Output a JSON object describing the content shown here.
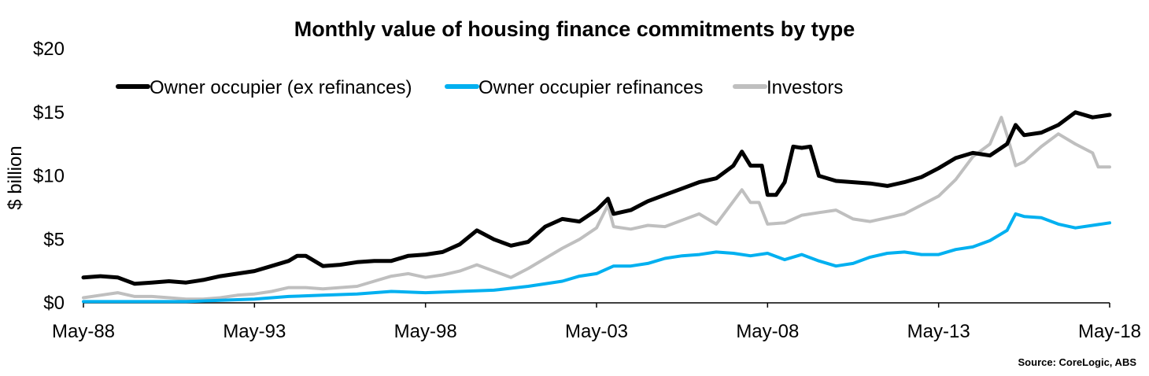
{
  "chart_data": {
    "type": "line",
    "title": "Monthly value of housing finance commitments by type",
    "ylabel": "$ billion",
    "xlabel": "",
    "ylim": [
      0,
      20
    ],
    "y_ticks": [
      "$0",
      "$5",
      "$10",
      "$15",
      "$20"
    ],
    "x_ticks": [
      "May-88",
      "May-93",
      "May-98",
      "May-03",
      "May-08",
      "May-13",
      "May-18"
    ],
    "legend_position": "top-left",
    "source": "Source: CoreLogic, ABS",
    "series": [
      {
        "name": "Owner occupier (ex refinances)",
        "color": "#000000",
        "points": [
          [
            "May-88",
            2.0
          ],
          [
            "Nov-88",
            2.1
          ],
          [
            "May-89",
            2.0
          ],
          [
            "Nov-89",
            1.5
          ],
          [
            "May-90",
            1.6
          ],
          [
            "Nov-90",
            1.7
          ],
          [
            "May-91",
            1.6
          ],
          [
            "Nov-91",
            1.8
          ],
          [
            "May-92",
            2.1
          ],
          [
            "Nov-92",
            2.3
          ],
          [
            "May-93",
            2.5
          ],
          [
            "Nov-93",
            2.9
          ],
          [
            "May-94",
            3.3
          ],
          [
            "Aug-94",
            3.7
          ],
          [
            "Nov-94",
            3.7
          ],
          [
            "May-95",
            2.9
          ],
          [
            "Nov-95",
            3.0
          ],
          [
            "May-96",
            3.2
          ],
          [
            "Nov-96",
            3.3
          ],
          [
            "May-97",
            3.3
          ],
          [
            "Nov-97",
            3.7
          ],
          [
            "May-98",
            3.8
          ],
          [
            "Nov-98",
            4.0
          ],
          [
            "May-99",
            4.6
          ],
          [
            "Nov-99",
            5.7
          ],
          [
            "May-00",
            5.0
          ],
          [
            "Nov-00",
            4.5
          ],
          [
            "May-01",
            4.8
          ],
          [
            "Nov-01",
            6.0
          ],
          [
            "May-02",
            6.6
          ],
          [
            "Nov-02",
            6.4
          ],
          [
            "May-03",
            7.3
          ],
          [
            "Sep-03",
            8.2
          ],
          [
            "Nov-03",
            7.0
          ],
          [
            "May-04",
            7.3
          ],
          [
            "Nov-04",
            8.0
          ],
          [
            "May-05",
            8.5
          ],
          [
            "Nov-05",
            9.0
          ],
          [
            "May-06",
            9.5
          ],
          [
            "Nov-06",
            9.8
          ],
          [
            "May-07",
            10.8
          ],
          [
            "Aug-07",
            11.9
          ],
          [
            "Nov-07",
            10.8
          ],
          [
            "Mar-08",
            10.8
          ],
          [
            "May-08",
            8.5
          ],
          [
            "Aug-08",
            8.5
          ],
          [
            "Nov-08",
            9.5
          ],
          [
            "Feb-09",
            12.3
          ],
          [
            "May-09",
            12.2
          ],
          [
            "Aug-09",
            12.3
          ],
          [
            "Nov-09",
            10.0
          ],
          [
            "May-10",
            9.6
          ],
          [
            "Nov-10",
            9.5
          ],
          [
            "May-11",
            9.4
          ],
          [
            "Nov-11",
            9.2
          ],
          [
            "May-12",
            9.5
          ],
          [
            "Nov-12",
            9.9
          ],
          [
            "May-13",
            10.6
          ],
          [
            "Nov-13",
            11.4
          ],
          [
            "May-14",
            11.8
          ],
          [
            "Nov-14",
            11.6
          ],
          [
            "May-15",
            12.5
          ],
          [
            "Aug-15",
            14.0
          ],
          [
            "Nov-15",
            13.2
          ],
          [
            "May-16",
            13.4
          ],
          [
            "Nov-16",
            14.0
          ],
          [
            "May-17",
            15.0
          ],
          [
            "Nov-17",
            14.6
          ],
          [
            "May-18",
            14.8
          ]
        ]
      },
      {
        "name": "Owner occupier refinances",
        "color": "#00b0f0",
        "points": [
          [
            "May-88",
            0.1
          ],
          [
            "May-89",
            0.1
          ],
          [
            "May-90",
            0.1
          ],
          [
            "May-91",
            0.1
          ],
          [
            "May-92",
            0.2
          ],
          [
            "May-93",
            0.3
          ],
          [
            "May-94",
            0.5
          ],
          [
            "May-95",
            0.6
          ],
          [
            "May-96",
            0.7
          ],
          [
            "May-97",
            0.9
          ],
          [
            "May-98",
            0.8
          ],
          [
            "May-99",
            0.9
          ],
          [
            "May-00",
            1.0
          ],
          [
            "May-01",
            1.3
          ],
          [
            "May-02",
            1.7
          ],
          [
            "Nov-02",
            2.1
          ],
          [
            "May-03",
            2.3
          ],
          [
            "Nov-03",
            2.9
          ],
          [
            "May-04",
            2.9
          ],
          [
            "Nov-04",
            3.1
          ],
          [
            "May-05",
            3.5
          ],
          [
            "Nov-05",
            3.7
          ],
          [
            "May-06",
            3.8
          ],
          [
            "Nov-06",
            4.0
          ],
          [
            "May-07",
            3.9
          ],
          [
            "Nov-07",
            3.7
          ],
          [
            "May-08",
            3.9
          ],
          [
            "Nov-08",
            3.4
          ],
          [
            "May-09",
            3.8
          ],
          [
            "Nov-09",
            3.3
          ],
          [
            "May-10",
            2.9
          ],
          [
            "Nov-10",
            3.1
          ],
          [
            "May-11",
            3.6
          ],
          [
            "Nov-11",
            3.9
          ],
          [
            "May-12",
            4.0
          ],
          [
            "Nov-12",
            3.8
          ],
          [
            "May-13",
            3.8
          ],
          [
            "Nov-13",
            4.2
          ],
          [
            "May-14",
            4.4
          ],
          [
            "Nov-14",
            4.9
          ],
          [
            "May-15",
            5.7
          ],
          [
            "Aug-15",
            7.0
          ],
          [
            "Nov-15",
            6.8
          ],
          [
            "May-16",
            6.7
          ],
          [
            "Nov-16",
            6.2
          ],
          [
            "May-17",
            5.9
          ],
          [
            "Nov-17",
            6.1
          ],
          [
            "May-18",
            6.3
          ]
        ]
      },
      {
        "name": "Investors",
        "color": "#bfbfbf",
        "points": [
          [
            "May-88",
            0.4
          ],
          [
            "Nov-88",
            0.6
          ],
          [
            "May-89",
            0.8
          ],
          [
            "Nov-89",
            0.5
          ],
          [
            "May-90",
            0.5
          ],
          [
            "Nov-90",
            0.4
          ],
          [
            "May-91",
            0.3
          ],
          [
            "Nov-91",
            0.3
          ],
          [
            "May-92",
            0.4
          ],
          [
            "Nov-92",
            0.6
          ],
          [
            "May-93",
            0.7
          ],
          [
            "Nov-93",
            0.9
          ],
          [
            "May-94",
            1.2
          ],
          [
            "Nov-94",
            1.2
          ],
          [
            "May-95",
            1.1
          ],
          [
            "Nov-95",
            1.2
          ],
          [
            "May-96",
            1.3
          ],
          [
            "Nov-96",
            1.7
          ],
          [
            "May-97",
            2.1
          ],
          [
            "Nov-97",
            2.3
          ],
          [
            "May-98",
            2.0
          ],
          [
            "Nov-98",
            2.2
          ],
          [
            "May-99",
            2.5
          ],
          [
            "Nov-99",
            3.0
          ],
          [
            "May-00",
            2.5
          ],
          [
            "Nov-00",
            2.0
          ],
          [
            "May-01",
            2.7
          ],
          [
            "Nov-01",
            3.5
          ],
          [
            "May-02",
            4.3
          ],
          [
            "Nov-02",
            5.0
          ],
          [
            "May-03",
            5.9
          ],
          [
            "Sep-03",
            7.7
          ],
          [
            "Nov-03",
            6.0
          ],
          [
            "May-04",
            5.8
          ],
          [
            "Nov-04",
            6.1
          ],
          [
            "May-05",
            6.0
          ],
          [
            "Nov-05",
            6.5
          ],
          [
            "May-06",
            7.0
          ],
          [
            "Nov-06",
            6.2
          ],
          [
            "May-07",
            8.0
          ],
          [
            "Aug-07",
            8.9
          ],
          [
            "Nov-07",
            7.9
          ],
          [
            "Feb-08",
            7.9
          ],
          [
            "May-08",
            6.2
          ],
          [
            "Nov-08",
            6.3
          ],
          [
            "May-09",
            6.9
          ],
          [
            "Nov-09",
            7.1
          ],
          [
            "May-10",
            7.3
          ],
          [
            "Nov-10",
            6.6
          ],
          [
            "May-11",
            6.4
          ],
          [
            "Nov-11",
            6.7
          ],
          [
            "May-12",
            7.0
          ],
          [
            "Nov-12",
            7.7
          ],
          [
            "May-13",
            8.4
          ],
          [
            "Nov-13",
            9.7
          ],
          [
            "May-14",
            11.5
          ],
          [
            "Nov-14",
            12.5
          ],
          [
            "Mar-15",
            14.6
          ],
          [
            "May-15",
            13.2
          ],
          [
            "Aug-15",
            10.8
          ],
          [
            "Nov-15",
            11.1
          ],
          [
            "May-16",
            12.3
          ],
          [
            "Nov-16",
            13.3
          ],
          [
            "May-17",
            12.5
          ],
          [
            "Nov-17",
            11.8
          ],
          [
            "Jan-18",
            10.7
          ],
          [
            "May-18",
            10.7
          ]
        ]
      }
    ]
  }
}
